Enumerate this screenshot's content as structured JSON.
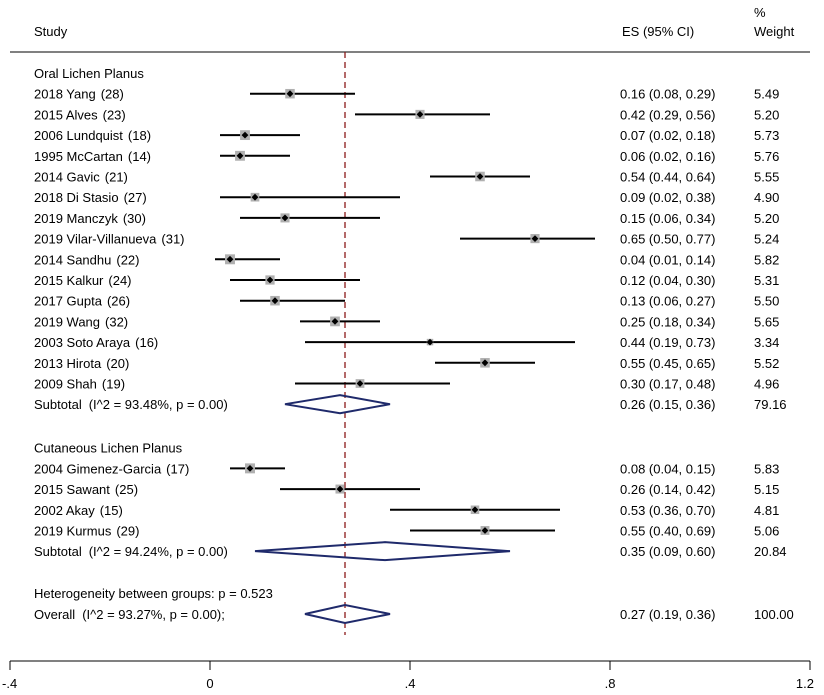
{
  "header": {
    "study": "Study",
    "es": "ES (95% CI)",
    "pct": "%",
    "weight": "Weight"
  },
  "chart_data": {
    "type": "forest",
    "xlim": [
      -0.4,
      1.2
    ],
    "ticks": [
      {
        "v": -0.4,
        "label": "-.4"
      },
      {
        "v": 0,
        "label": "0"
      },
      {
        "v": 0.4,
        "label": ".4"
      },
      {
        "v": 0.8,
        "label": ".8"
      },
      {
        "v": 1.2,
        "label": "1.2"
      }
    ],
    "overall_line": 0.27,
    "groups": [
      {
        "name": "Oral Lichen Planus",
        "studies": [
          {
            "label": "2018 Yang",
            "ref": "(28)",
            "es": 0.16,
            "lo": 0.08,
            "hi": 0.29,
            "ci": "0.16 (0.08, 0.29)",
            "weight": "5.49"
          },
          {
            "label": "2015 Alves",
            "ref": "(23)",
            "es": 0.42,
            "lo": 0.29,
            "hi": 0.56,
            "ci": "0.42 (0.29, 0.56)",
            "weight": "5.20"
          },
          {
            "label": "2006 Lundquist",
            "ref": "(18)",
            "es": 0.07,
            "lo": 0.02,
            "hi": 0.18,
            "ci": "0.07 (0.02, 0.18)",
            "weight": "5.73"
          },
          {
            "label": "1995 McCartan",
            "ref": "(14)",
            "es": 0.06,
            "lo": 0.02,
            "hi": 0.16,
            "ci": "0.06 (0.02, 0.16)",
            "weight": "5.76"
          },
          {
            "label": "2014 Gavic",
            "ref": "(21)",
            "es": 0.54,
            "lo": 0.44,
            "hi": 0.64,
            "ci": "0.54 (0.44, 0.64)",
            "weight": "5.55"
          },
          {
            "label": "2018 Di Stasio",
            "ref": "(27)",
            "es": 0.09,
            "lo": 0.02,
            "hi": 0.38,
            "ci": "0.09 (0.02, 0.38)",
            "weight": "4.90"
          },
          {
            "label": "2019 Manczyk",
            "ref": "(30)",
            "es": 0.15,
            "lo": 0.06,
            "hi": 0.34,
            "ci": "0.15 (0.06, 0.34)",
            "weight": "5.20"
          },
          {
            "label": "2019 Vilar-Villanueva",
            "ref": "(31)",
            "es": 0.65,
            "lo": 0.5,
            "hi": 0.77,
            "ci": "0.65 (0.50, 0.77)",
            "weight": "5.24"
          },
          {
            "label": "2014 Sandhu",
            "ref": "(22)",
            "es": 0.04,
            "lo": 0.01,
            "hi": 0.14,
            "ci": "0.04 (0.01, 0.14)",
            "weight": "5.82"
          },
          {
            "label": "2015 Kalkur",
            "ref": "(24)",
            "es": 0.12,
            "lo": 0.04,
            "hi": 0.3,
            "ci": "0.12 (0.04, 0.30)",
            "weight": "5.31"
          },
          {
            "label": "2017 Gupta",
            "ref": "(26)",
            "es": 0.13,
            "lo": 0.06,
            "hi": 0.27,
            "ci": "0.13 (0.06, 0.27)",
            "weight": "5.50"
          },
          {
            "label": "2019 Wang",
            "ref": "(32)",
            "es": 0.25,
            "lo": 0.18,
            "hi": 0.34,
            "ci": "0.25 (0.18, 0.34)",
            "weight": "5.65"
          },
          {
            "label": "2003 Soto Araya",
            "ref": "(16)",
            "es": 0.44,
            "lo": 0.19,
            "hi": 0.73,
            "ci": "0.44 (0.19, 0.73)",
            "weight": "3.34"
          },
          {
            "label": "2013 Hirota",
            "ref": "(20)",
            "es": 0.55,
            "lo": 0.45,
            "hi": 0.65,
            "ci": "0.55 (0.45, 0.65)",
            "weight": "5.52"
          },
          {
            "label": "2009 Shah",
            "ref": "(19)",
            "es": 0.3,
            "lo": 0.17,
            "hi": 0.48,
            "ci": "0.30 (0.17, 0.48)",
            "weight": "4.96"
          }
        ],
        "subtotal": {
          "label": "Subtotal",
          "stat": "(I^2 = 93.48%, p = 0.00)",
          "es": 0.26,
          "lo": 0.15,
          "hi": 0.36,
          "ci": "0.26 (0.15, 0.36)",
          "weight": "79.16"
        }
      },
      {
        "name": "Cutaneous Lichen Planus",
        "studies": [
          {
            "label": "2004 Gimenez-Garcia",
            "ref": "(17)",
            "es": 0.08,
            "lo": 0.04,
            "hi": 0.15,
            "ci": "0.08 (0.04, 0.15)",
            "weight": "5.83"
          },
          {
            "label": "2015 Sawant",
            "ref": "(25)",
            "es": 0.26,
            "lo": 0.14,
            "hi": 0.42,
            "ci": "0.26 (0.14, 0.42)",
            "weight": "5.15"
          },
          {
            "label": "2002 Akay",
            "ref": "(15)",
            "es": 0.53,
            "lo": 0.36,
            "hi": 0.7,
            "ci": "0.53 (0.36, 0.70)",
            "weight": "4.81"
          },
          {
            "label": "2019 Kurmus",
            "ref": "(29)",
            "es": 0.55,
            "lo": 0.4,
            "hi": 0.69,
            "ci": "0.55 (0.40, 0.69)",
            "weight": "5.06"
          }
        ],
        "subtotal": {
          "label": "Subtotal",
          "stat": "(I^2 = 94.24%, p = 0.00)",
          "es": 0.35,
          "lo": 0.09,
          "hi": 0.6,
          "ci": "0.35 (0.09, 0.60)",
          "weight": "20.84"
        }
      }
    ],
    "heterogeneity": "Heterogeneity between groups: p = 0.523",
    "overall": {
      "label": "Overall",
      "stat": "(I^2 = 93.27%, p = 0.00);",
      "es": 0.27,
      "lo": 0.19,
      "hi": 0.36,
      "ci": "0.27 (0.19, 0.36)",
      "weight": "100.00"
    },
    "colors": {
      "diamond": "#1f2a6b",
      "ref_line": "#8b1a1a",
      "box": "#b0b0b0"
    }
  }
}
